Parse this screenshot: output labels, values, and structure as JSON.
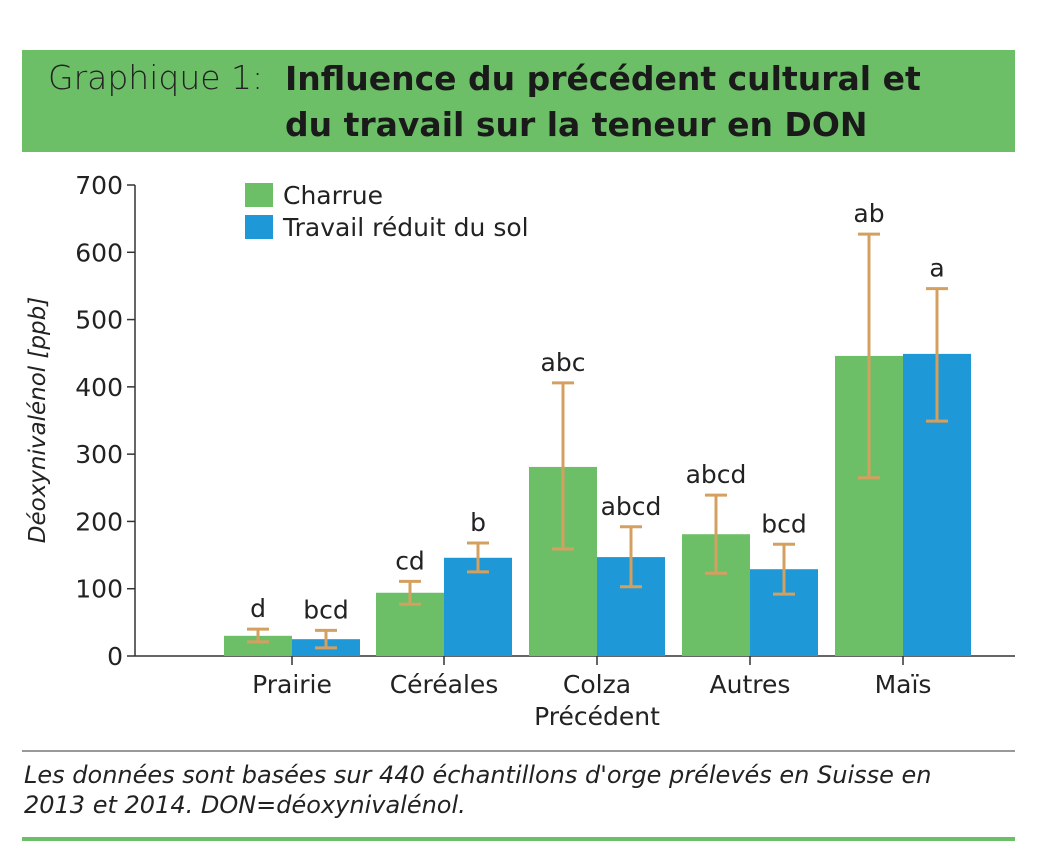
{
  "title": {
    "prefix": "Graphique 1:",
    "line1": "Influence du précédent cultural et",
    "line2": "du travail sur la teneur en DON"
  },
  "footnote": {
    "line1": "Les données sont basées sur 440 échantillons d'orge prélevés en Suisse en",
    "line2": "2013 et 2014. DON=déoxynivalénol."
  },
  "colors": {
    "band": "#6cbf67",
    "charrue": "#6cbf67",
    "reduit": "#1e98d6",
    "error": "#d4a060"
  },
  "chart_data": {
    "type": "bar",
    "title": "Influence du précédent cultural et du travail sur la teneur en DON",
    "xlabel": "Précédent",
    "ylabel": "Déoxynivalénol [ppb]",
    "ylim": [
      0,
      700
    ],
    "yticks": [
      0,
      100,
      200,
      300,
      400,
      500,
      600,
      700
    ],
    "legend_position": "top-left",
    "categories": [
      "Prairie",
      "Céréales",
      "Colza",
      "Autres",
      "Maïs"
    ],
    "series": [
      {
        "name": "Charrue",
        "values": [
          30,
          94,
          281,
          181,
          446
        ],
        "err_low": [
          21,
          77,
          159,
          123,
          265
        ],
        "err_high": [
          40,
          111,
          406,
          239,
          627
        ],
        "labels": [
          "d",
          "cd",
          "abc",
          "abcd",
          "ab"
        ]
      },
      {
        "name": "Travail réduit du sol",
        "values": [
          25,
          146,
          147,
          129,
          449
        ],
        "err_low": [
          12,
          125,
          103,
          92,
          349
        ],
        "err_high": [
          38,
          168,
          192,
          166,
          546
        ],
        "labels": [
          "bcd",
          "b",
          "abcd",
          "bcd",
          "a"
        ]
      }
    ]
  }
}
